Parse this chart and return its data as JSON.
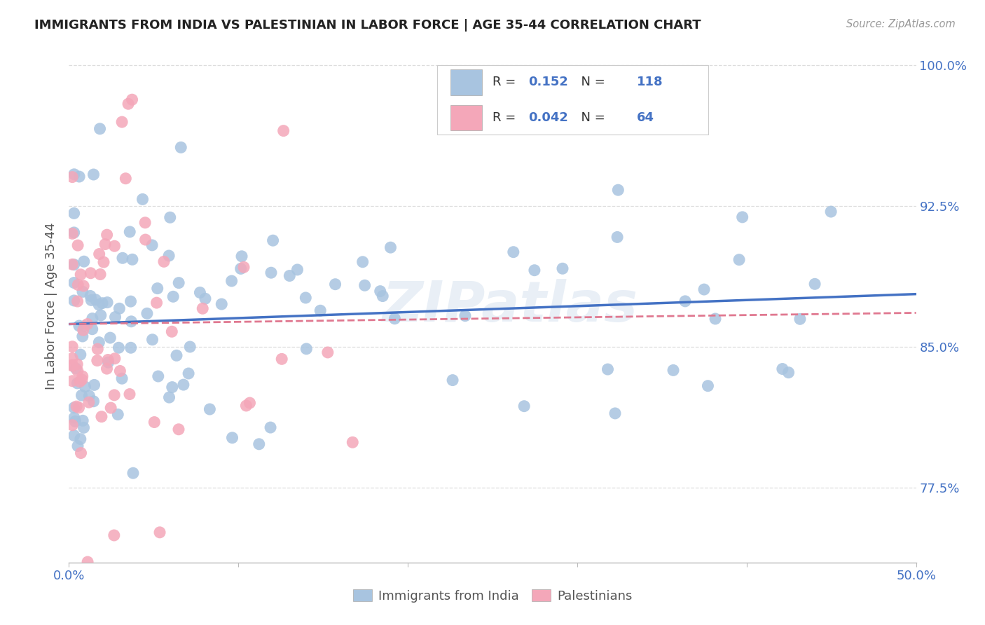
{
  "title": "IMMIGRANTS FROM INDIA VS PALESTINIAN IN LABOR FORCE | AGE 35-44 CORRELATION CHART",
  "source": "Source: ZipAtlas.com",
  "ylabel": "In Labor Force | Age 35-44",
  "x_min": 0.0,
  "x_max": 0.5,
  "y_min": 0.735,
  "y_max": 1.008,
  "y_ticks": [
    0.775,
    0.85,
    0.925,
    1.0
  ],
  "y_tick_labels": [
    "77.5%",
    "85.0%",
    "92.5%",
    "100.0%"
  ],
  "india_color": "#a8c4e0",
  "india_color_line": "#4472c4",
  "pal_color": "#f4a7b9",
  "pal_color_line": "#e07890",
  "india_R": "0.152",
  "india_N": "118",
  "pal_R": "0.042",
  "pal_N": "64",
  "legend_label_india": "Immigrants from India",
  "legend_label_pal": "Palestinians",
  "watermark": "ZIPatlas",
  "background_color": "#ffffff",
  "grid_color": "#dddddd",
  "india_trend_x0": 0.0,
  "india_trend_y0": 0.862,
  "india_trend_x1": 0.5,
  "india_trend_y1": 0.878,
  "pal_trend_x0": 0.0,
  "pal_trend_y0": 0.862,
  "pal_trend_x1": 0.5,
  "pal_trend_y1": 0.868
}
